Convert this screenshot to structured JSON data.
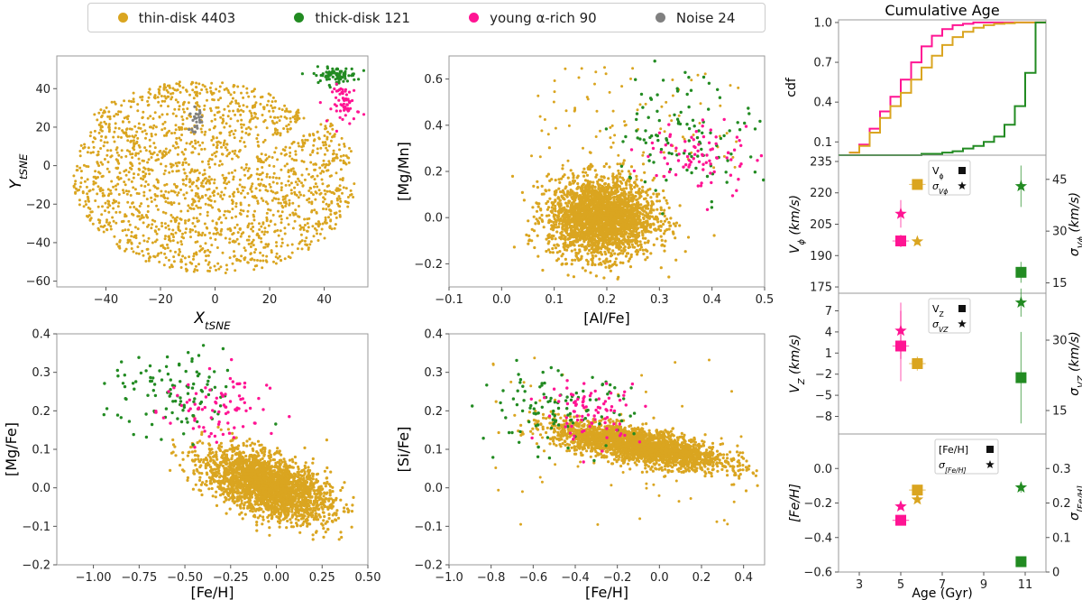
{
  "legend": {
    "entries": [
      {
        "label": "thin-disk 4403",
        "color": "#DAA520"
      },
      {
        "label": "thick-disk 121",
        "color": "#228B22"
      },
      {
        "label": "young α-rich 90",
        "color": "#FF1493"
      },
      {
        "label": "Noise 24",
        "color": "#808080"
      }
    ]
  },
  "chart_data": [
    {
      "id": "tsne",
      "type": "scatter",
      "xlabel": "X_tSNE",
      "ylabel": "Y_tSNE",
      "xlim": [
        -58,
        56
      ],
      "ylim": [
        -63,
        57
      ],
      "xticks": [
        -40,
        -20,
        0,
        20,
        40
      ],
      "yticks": [
        -60,
        -40,
        -20,
        0,
        20,
        40
      ],
      "xticklabels": [
        "−40",
        "−20",
        "0",
        "20",
        "40"
      ],
      "yticklabels": [
        "−60",
        "−40",
        "−20",
        "0",
        "20",
        "40"
      ],
      "groups": {
        "thin": 4403,
        "thick": 121,
        "young": 90,
        "noise": 24
      }
    },
    {
      "id": "mgmn_alfe",
      "type": "scatter",
      "xlabel": "[Al/Fe]",
      "ylabel": "[Mg/Mn]",
      "xlim": [
        -0.1,
        0.5
      ],
      "ylim": [
        -0.3,
        0.7
      ],
      "xticks": [
        -0.1,
        0.0,
        0.1,
        0.2,
        0.3,
        0.4,
        0.5
      ],
      "yticks": [
        -0.2,
        0.0,
        0.2,
        0.4,
        0.6
      ],
      "xticklabels": [
        "−0.1",
        "0.0",
        "0.1",
        "0.2",
        "0.3",
        "0.4",
        "0.5"
      ],
      "yticklabels": [
        "−0.2",
        "0.0",
        "0.2",
        "0.4",
        "0.6"
      ]
    },
    {
      "id": "mgfe_feh",
      "type": "scatter",
      "xlabel": "[Fe/H]",
      "ylabel": "[Mg/Fe]",
      "xlim": [
        -1.2,
        0.5
      ],
      "ylim": [
        -0.2,
        0.4
      ],
      "xticks": [
        -1.0,
        -0.75,
        -0.5,
        -0.25,
        0.0,
        0.25,
        0.5
      ],
      "yticks": [
        -0.2,
        -0.1,
        0.0,
        0.1,
        0.2,
        0.3,
        0.4
      ],
      "xticklabels": [
        "−1.00",
        "−0.75",
        "−0.50",
        "−0.25",
        "0.00",
        "0.25",
        "0.50"
      ],
      "yticklabels": [
        "−0.2",
        "−0.1",
        "0.0",
        "0.1",
        "0.2",
        "0.3",
        "0.4"
      ]
    },
    {
      "id": "sife_feh",
      "type": "scatter",
      "xlabel": "[Fe/H]",
      "ylabel": "[Si/Fe]",
      "xlim": [
        -1.0,
        0.5
      ],
      "ylim": [
        -0.2,
        0.4
      ],
      "xticks": [
        -1.0,
        -0.8,
        -0.6,
        -0.4,
        -0.2,
        0.0,
        0.2,
        0.4
      ],
      "yticks": [
        -0.2,
        -0.1,
        0.0,
        0.1,
        0.2,
        0.3,
        0.4
      ],
      "xticklabels": [
        "−1.0",
        "−0.8",
        "−0.6",
        "−0.4",
        "−0.2",
        "0.0",
        "0.2",
        "0.4"
      ],
      "yticklabels": [
        "−0.2",
        "−0.1",
        "0.0",
        "0.1",
        "0.2",
        "0.3",
        "0.4"
      ]
    },
    {
      "id": "cdf",
      "type": "line",
      "title": "Cumulative Age",
      "ylabel": "cdf",
      "xlim": [
        2,
        12
      ],
      "ylim": [
        0,
        1.02
      ],
      "yticks": [
        0.1,
        0.4,
        0.7,
        1.0
      ],
      "yticklabels": [
        "0.1",
        "0.4",
        "0.7",
        "1.0"
      ],
      "series": [
        {
          "name": "young",
          "color": "#FF1493",
          "x": [
            2.5,
            3,
            3.5,
            4,
            4.5,
            5,
            5.5,
            6,
            6.5,
            7,
            7.5,
            8,
            8.5,
            9,
            9.5,
            10,
            11,
            12
          ],
          "y": [
            0.02,
            0.08,
            0.2,
            0.33,
            0.44,
            0.57,
            0.7,
            0.82,
            0.9,
            0.95,
            0.98,
            0.99,
            1,
            1,
            1,
            1,
            1,
            1
          ]
        },
        {
          "name": "thin",
          "color": "#DAA520",
          "x": [
            2.5,
            3,
            3.5,
            4,
            4.5,
            5,
            5.5,
            6,
            6.5,
            7,
            7.5,
            8,
            8.5,
            9,
            9.5,
            10,
            10.5,
            11,
            12
          ],
          "y": [
            0.02,
            0.07,
            0.17,
            0.28,
            0.37,
            0.47,
            0.57,
            0.66,
            0.75,
            0.83,
            0.89,
            0.93,
            0.96,
            0.98,
            0.99,
            0.995,
            1,
            1,
            1
          ]
        },
        {
          "name": "thick",
          "color": "#228B22",
          "x": [
            2,
            5,
            6,
            6.5,
            7,
            7.5,
            8,
            8.5,
            9,
            9.5,
            10,
            10.5,
            11,
            11.5,
            12
          ],
          "y": [
            0,
            0,
            0.01,
            0.01,
            0.02,
            0.03,
            0.05,
            0.07,
            0.1,
            0.14,
            0.23,
            0.37,
            0.62,
            1,
            1
          ]
        }
      ]
    },
    {
      "id": "vphi",
      "type": "errorbar",
      "ylabel": "V_phi (km/s)",
      "y2label": "sigma_Vphi (km/s)",
      "xlim": [
        2,
        12
      ],
      "ylim": [
        172,
        238
      ],
      "y2lim": [
        12,
        52
      ],
      "yticks": [
        175,
        190,
        205,
        220,
        235
      ],
      "y2ticks": [
        15,
        30,
        45
      ],
      "legend": [
        "V_phi",
        "sigma_Vphi"
      ],
      "squares": [
        {
          "group": "young",
          "x": 5.0,
          "y": 197,
          "xerr": 0.4,
          "yerr": 3
        },
        {
          "group": "thin",
          "x": 5.8,
          "y": 224,
          "xerr": 0.4,
          "yerr": 1
        },
        {
          "group": "thick",
          "x": 10.8,
          "y": 182,
          "xerr": 0.2,
          "yerr": 5
        }
      ],
      "stars": [
        {
          "group": "young",
          "x": 5.0,
          "y": 35,
          "yerr": 4
        },
        {
          "group": "thin",
          "x": 5.8,
          "y": 27,
          "yerr": 1
        },
        {
          "group": "thick",
          "x": 10.8,
          "y": 43,
          "yerr": 6
        }
      ]
    },
    {
      "id": "vz",
      "type": "errorbar",
      "ylabel": "V_Z (km/s)",
      "y2label": "sigma_VZ (km/s)",
      "xlim": [
        2,
        12
      ],
      "ylim": [
        -10.5,
        9.5
      ],
      "y2lim": [
        10,
        40
      ],
      "yticks": [
        -8,
        -5,
        -2,
        1,
        4,
        7
      ],
      "y2ticks": [
        15,
        30
      ],
      "yticklabels": [
        "−8",
        "−5",
        "−2",
        "1",
        "4",
        "7"
      ],
      "legend": [
        "V_Z",
        "sigma_VZ"
      ],
      "squares": [
        {
          "group": "young",
          "x": 5.0,
          "y": 2,
          "xerr": 0.4,
          "yerr": 5
        },
        {
          "group": "thin",
          "x": 5.8,
          "y": -0.5,
          "xerr": 0.4,
          "yerr": 1
        },
        {
          "group": "thick",
          "x": 10.8,
          "y": -2.5,
          "xerr": 0.2,
          "yerr": 6.5
        }
      ],
      "stars": [
        {
          "group": "young",
          "x": 5.0,
          "y": 32,
          "yerr": 6
        },
        {
          "group": "thin",
          "x": 5.8,
          "y": 25,
          "yerr": 0.5
        },
        {
          "group": "thick",
          "x": 10.8,
          "y": 38,
          "yerr": 3
        }
      ]
    },
    {
      "id": "feh",
      "type": "errorbar",
      "ylabel": "[Fe/H]",
      "y2label": "sigma_[Fe/H]",
      "xlabel": "Age (Gyr)",
      "xlim": [
        2,
        12
      ],
      "ylim": [
        -0.6,
        0.2
      ],
      "y2lim": [
        0,
        0.4
      ],
      "xticks": [
        3,
        5,
        7,
        9,
        11
      ],
      "yticks": [
        -0.6,
        -0.4,
        -0.2,
        0.0
      ],
      "y2ticks": [
        0.0,
        0.1,
        0.2,
        0.3
      ],
      "yticklabels": [
        "−0.6",
        "−0.4",
        "−0.2",
        "0.0"
      ],
      "legend": [
        "[Fe/H]",
        "sigma_[Fe/H]"
      ],
      "squares": [
        {
          "group": "young",
          "x": 5.0,
          "y": -0.3,
          "xerr": 0.4,
          "yerr": 0.01
        },
        {
          "group": "thin",
          "x": 5.8,
          "y": -0.125,
          "xerr": 0.4,
          "yerr": 0.005
        },
        {
          "group": "thick",
          "x": 10.8,
          "y": -0.54,
          "xerr": 0.2,
          "yerr": 0.01
        }
      ],
      "stars": [
        {
          "group": "young",
          "x": 5.0,
          "y": 0.19,
          "yerr": 0.01
        },
        {
          "group": "thin",
          "x": 5.8,
          "y": 0.21,
          "yerr": 0.005
        },
        {
          "group": "thick",
          "x": 10.8,
          "y": 0.245,
          "yerr": 0.015
        }
      ]
    }
  ]
}
